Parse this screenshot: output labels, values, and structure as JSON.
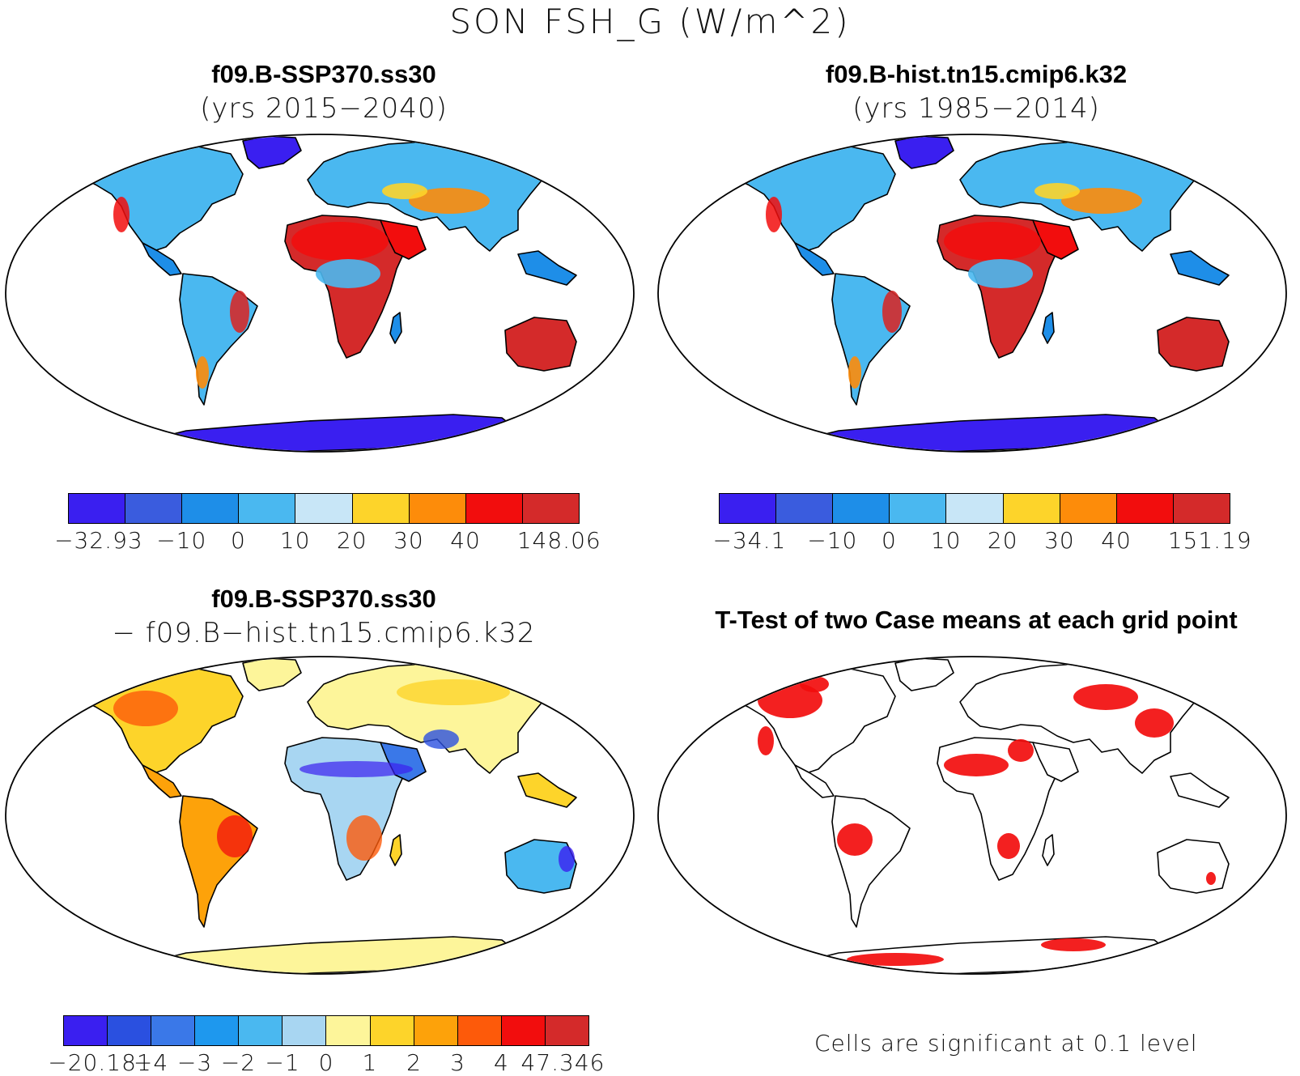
{
  "title": "SON FSH_G (W/m^2)",
  "panels": [
    {
      "title": "f09.B-SSP370.ss30",
      "subtitle": "(yrs 2015−2040)",
      "colorbar": {
        "colors": [
          "#3a1ff0",
          "#3a5cde",
          "#1e8ee8",
          "#4ab8f0",
          "#c8e6f7",
          "#fdd42a",
          "#fd8c0a",
          "#f20d0d",
          "#d42a2a"
        ],
        "labels": [
          "−32.93",
          "−10",
          "0",
          "10",
          "20",
          "30",
          "40",
          "148.06"
        ]
      }
    },
    {
      "title": "f09.B-hist.tn15.cmip6.k32",
      "subtitle": "(yrs 1985−2014)",
      "colorbar": {
        "colors": [
          "#3a1ff0",
          "#3a5cde",
          "#1e8ee8",
          "#4ab8f0",
          "#c8e6f7",
          "#fdd42a",
          "#fd8c0a",
          "#f20d0d",
          "#d42a2a"
        ],
        "labels": [
          "−34.1",
          "−10",
          "0",
          "10",
          "20",
          "30",
          "40",
          "151.19"
        ]
      }
    },
    {
      "title": "f09.B-SSP370.ss30",
      "subtitle": "− f09.B−hist.tn15.cmip6.k32",
      "colorbar": {
        "colors": [
          "#3a1ff0",
          "#2a50e0",
          "#3a78e8",
          "#1e98ee",
          "#4ab8f0",
          "#a8d6f2",
          "#fdf59a",
          "#fdd42a",
          "#fda20a",
          "#fd5a0a",
          "#f20d0d",
          "#d42a2a"
        ],
        "labels": [
          "−20.181",
          "−4",
          "−3",
          "−2",
          "−1",
          "0",
          "1",
          "2",
          "3",
          "4",
          "47.346"
        ]
      }
    },
    {
      "title": "T-Test of two Case means at each grid point",
      "note": "Cells are significant at 0.1 level"
    }
  ]
}
